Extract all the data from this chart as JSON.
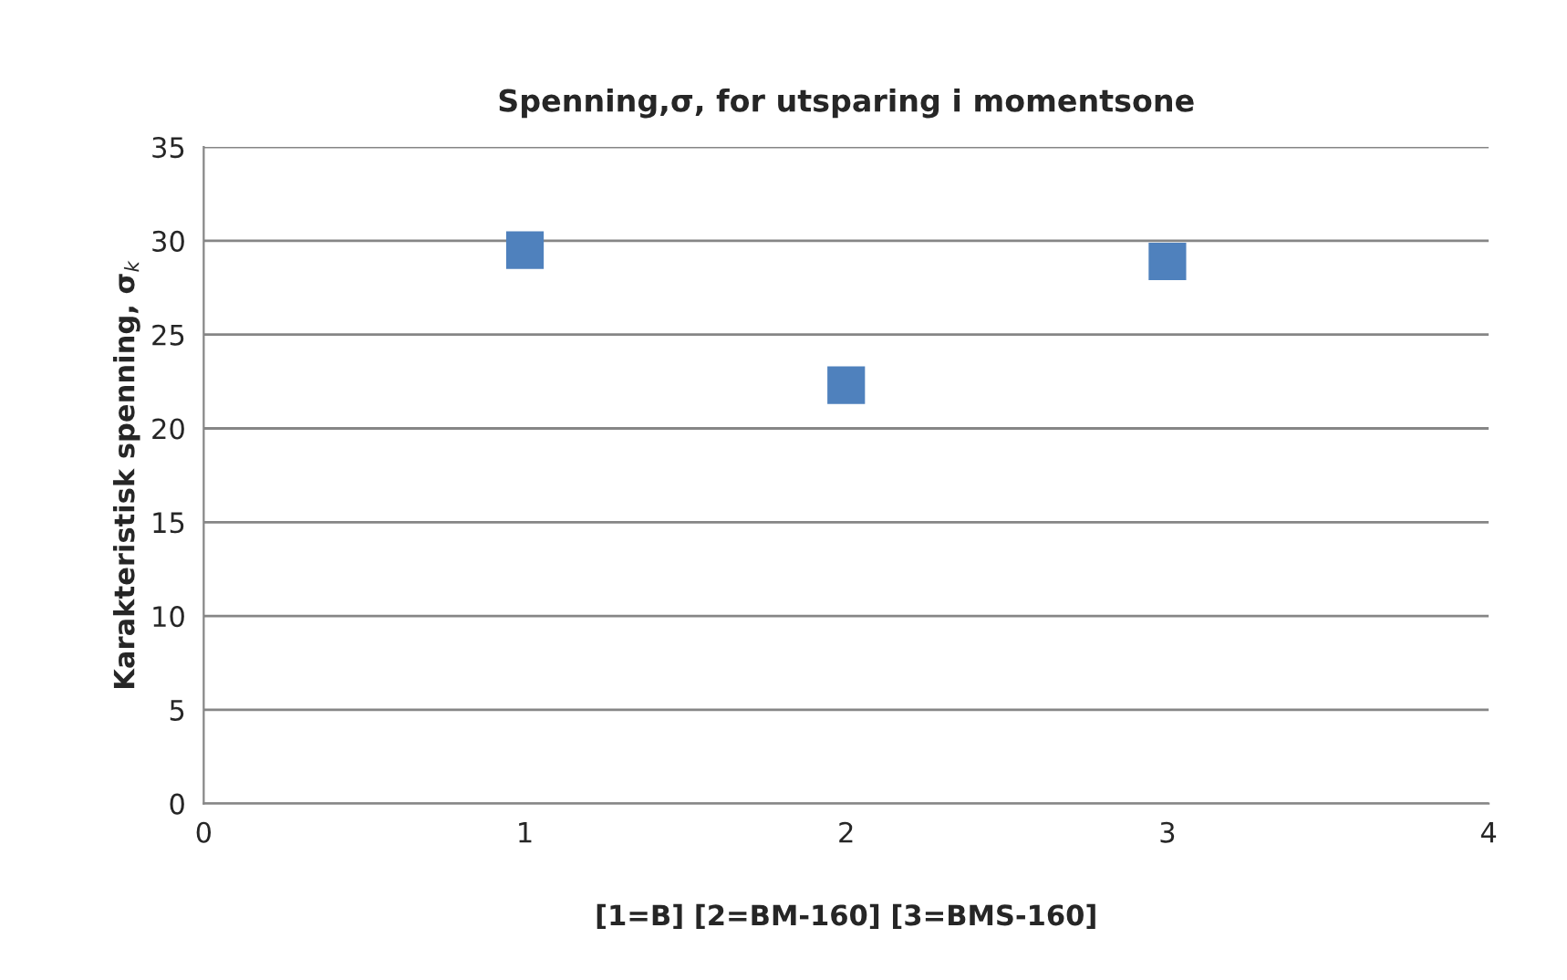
{
  "chart_data": {
    "type": "scatter",
    "title": "Spenning,σ, for utsparing i momentsone",
    "xlabel": "[1=B] [2=BM-160] [3=BMS-160]",
    "ylabel": "Karakteristisk spenning, σ$_{k}$",
    "x": [
      1,
      2,
      3
    ],
    "series": [
      {
        "color": "#4f81bd",
        "values": [
          29.5,
          22.3,
          28.9
        ]
      }
    ],
    "xlim": [
      0,
      4
    ],
    "xticks": [
      0,
      1,
      2,
      3,
      4
    ],
    "ylim": [
      0,
      35
    ],
    "yticks": [
      0,
      5,
      10,
      15,
      20,
      25,
      30,
      35
    ],
    "grid": "y",
    "marker": "square"
  }
}
